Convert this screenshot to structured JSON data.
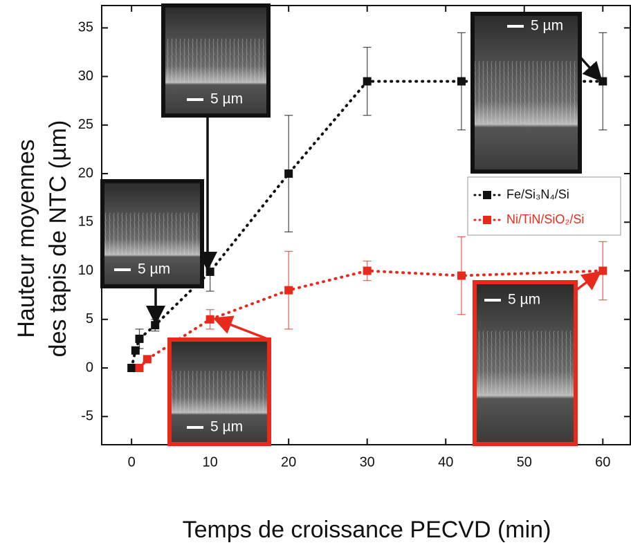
{
  "chart_data": {
    "type": "line",
    "x_label": "Temps de croissance PECVD (min)",
    "y_label": [
      "Hauteur moyennes",
      "des tapis de NTC (µm)"
    ],
    "xlim": [
      -3.8,
      63.5
    ],
    "ylim": [
      -7.9,
      37.3
    ],
    "xticks": [
      0,
      10,
      20,
      30,
      40,
      50,
      60
    ],
    "yticks": [
      -5,
      0,
      5,
      10,
      15,
      20,
      25,
      30,
      35
    ],
    "legend": "right",
    "series": [
      {
        "name": "Fe/Si₃N₄/Si",
        "color": "#111111",
        "x": [
          0,
          0.5,
          1,
          3,
          10,
          20,
          30,
          42,
          60
        ],
        "values": [
          0,
          1.8,
          3,
          4.4,
          9.9,
          20,
          29.5,
          29.5,
          29.5
        ],
        "errors": [
          null,
          null,
          1,
          0.6,
          2,
          6,
          3.5,
          5,
          5
        ]
      },
      {
        "name": "Ni/TiN/SiO₂/Si",
        "color": "#e8291c",
        "x": [
          1,
          2,
          10,
          20,
          30,
          42,
          60
        ],
        "values": [
          0,
          0.9,
          5,
          8,
          10,
          9.5,
          10
        ],
        "errors": [
          null,
          null,
          1,
          4,
          1,
          4,
          3
        ]
      }
    ],
    "annotations": [
      "5 µm",
      "5 µm",
      "5 µm",
      "5 µm",
      "5 µm"
    ]
  }
}
